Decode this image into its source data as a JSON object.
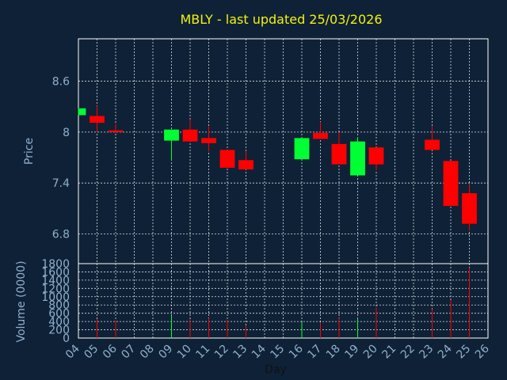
{
  "chart_data": {
    "type": "candlestick",
    "title": "MBLY - last updated 25/03/2026",
    "xlabel": "Day",
    "price_ylabel": "Price",
    "volume_ylabel": "Volume (0000)",
    "x_ticks": [
      "04",
      "05",
      "06",
      "07",
      "08",
      "09",
      "10",
      "11",
      "12",
      "13",
      "14",
      "15",
      "16",
      "17",
      "18",
      "19",
      "20",
      "21",
      "22",
      "23",
      "24",
      "25",
      "26"
    ],
    "price_ticks": [
      {
        "v": 8.6,
        "label": "8.6"
      },
      {
        "v": 8.0,
        "label": "8"
      },
      {
        "v": 7.4,
        "label": "7.4"
      },
      {
        "v": 6.8,
        "label": "6.8"
      }
    ],
    "price_range": [
      6.45,
      9.1
    ],
    "volume_ticks": [
      0,
      200,
      400,
      600,
      800,
      1000,
      1200,
      1400,
      1600,
      1800
    ],
    "volume_range": [
      0,
      1800
    ],
    "up_color": "#00ff33",
    "down_color": "#ff0000",
    "candles": [
      {
        "day": 4,
        "open": 8.2,
        "close": 8.28,
        "high": 8.28,
        "low": 8.2,
        "volume": 0
      },
      {
        "day": 5,
        "open": 8.19,
        "close": 8.11,
        "high": 8.31,
        "low": 8.0,
        "volume": 460
      },
      {
        "day": 6,
        "open": 8.02,
        "close": 8.0,
        "high": 8.1,
        "low": 7.99,
        "volume": 420
      },
      {
        "day": 9,
        "open": 7.9,
        "close": 8.03,
        "high": 8.03,
        "low": 7.67,
        "volume": 540
      },
      {
        "day": 10,
        "open": 8.03,
        "close": 7.89,
        "high": 8.15,
        "low": 7.89,
        "volume": 460
      },
      {
        "day": 11,
        "open": 7.93,
        "close": 7.87,
        "high": 8.07,
        "low": 7.77,
        "volume": 480
      },
      {
        "day": 12,
        "open": 7.79,
        "close": 7.58,
        "high": 7.79,
        "low": 7.58,
        "volume": 440
      },
      {
        "day": 13,
        "open": 7.67,
        "close": 7.56,
        "high": 7.78,
        "low": 7.56,
        "volume": 300
      },
      {
        "day": 16,
        "open": 7.68,
        "close": 7.93,
        "high": 7.93,
        "low": 7.68,
        "volume": 380
      },
      {
        "day": 17,
        "open": 7.99,
        "close": 7.92,
        "high": 8.12,
        "low": 7.92,
        "volume": 380
      },
      {
        "day": 18,
        "open": 7.86,
        "close": 7.62,
        "high": 8.0,
        "low": 7.62,
        "volume": 480
      },
      {
        "day": 19,
        "open": 7.49,
        "close": 7.89,
        "high": 7.94,
        "low": 7.49,
        "volume": 470
      },
      {
        "day": 20,
        "open": 7.82,
        "close": 7.62,
        "high": 7.82,
        "low": 7.55,
        "volume": 740
      },
      {
        "day": 23,
        "open": 7.91,
        "close": 7.79,
        "high": 8.07,
        "low": 7.79,
        "volume": 700
      },
      {
        "day": 24,
        "open": 7.66,
        "close": 7.13,
        "high": 7.66,
        "low": 7.13,
        "volume": 920
      },
      {
        "day": 25,
        "open": 7.28,
        "close": 6.92,
        "high": 7.38,
        "low": 6.84,
        "volume": 1700
      }
    ],
    "grid": true
  }
}
